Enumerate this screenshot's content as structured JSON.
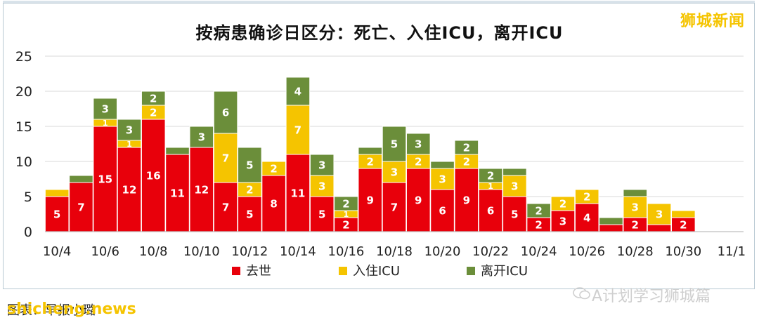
{
  "brand_tag": "狮城新闻",
  "chart_data": {
    "type": "bar",
    "stacked": true,
    "title": "按病患确诊日区分：死亡、入住ICU，离开ICU",
    "xlabel": "",
    "ylabel": "",
    "ylim": [
      0,
      25
    ],
    "yticks": [
      0,
      5,
      10,
      15,
      20,
      25
    ],
    "grid": true,
    "legend_position": "bottom",
    "categories": [
      "10/4",
      "10/5",
      "10/6",
      "10/7",
      "10/8",
      "10/9",
      "10/10",
      "10/11",
      "10/12",
      "10/13",
      "10/14",
      "10/15",
      "10/16",
      "10/17",
      "10/18",
      "10/19",
      "10/20",
      "10/21",
      "10/22",
      "10/23",
      "10/24",
      "10/25",
      "10/26",
      "10/27",
      "10/28",
      "10/29",
      "10/30",
      "10/31",
      "11/1"
    ],
    "tick_labels": [
      "10/4",
      "10/6",
      "10/8",
      "10/10",
      "10/12",
      "10/14",
      "10/16",
      "10/18",
      "10/20",
      "10/22",
      "10/24",
      "10/26",
      "10/28",
      "10/30",
      "11/1"
    ],
    "series": [
      {
        "name": "去世",
        "color": "#e8000b",
        "values": [
          5,
          7,
          15,
          12,
          16,
          11,
          12,
          7,
          5,
          8,
          11,
          5,
          2,
          9,
          7,
          9,
          6,
          9,
          6,
          5,
          2,
          3,
          4,
          1,
          2,
          1,
          2,
          0,
          0
        ],
        "labels": [
          "5",
          "7",
          "15",
          "12",
          "16",
          "11",
          "12",
          "7",
          "5",
          "8",
          "11",
          "5",
          "2",
          "9",
          "7",
          "9",
          "6",
          "9",
          "6",
          "5",
          "2",
          "3",
          "4",
          "",
          "2",
          "",
          "2",
          "",
          ""
        ]
      },
      {
        "name": "入住ICU",
        "color": "#f5c400",
        "values": [
          1,
          0,
          1,
          1,
          2,
          0,
          0,
          7,
          2,
          2,
          7,
          3,
          1,
          2,
          3,
          2,
          3,
          2,
          1,
          3,
          0,
          2,
          2,
          0,
          3,
          3,
          1,
          0,
          0
        ],
        "labels": [
          "",
          "",
          "1",
          "1",
          "2",
          "",
          "",
          "7",
          "2",
          "2",
          "7",
          "3",
          "1",
          "2",
          "3",
          "2",
          "3",
          "2",
          "1",
          "3",
          "",
          "2",
          "2",
          "",
          "3",
          "3",
          "",
          "",
          ""
        ]
      },
      {
        "name": "离开ICU",
        "color": "#6b8e3a",
        "values": [
          0,
          1,
          3,
          3,
          2,
          1,
          3,
          6,
          5,
          0,
          4,
          3,
          2,
          1,
          5,
          3,
          1,
          2,
          2,
          1,
          2,
          0,
          0,
          1,
          1,
          0,
          0,
          0,
          0
        ],
        "labels": [
          "",
          "",
          "3",
          "3",
          "2",
          "",
          "3",
          "6",
          "5",
          "",
          "4",
          "3",
          "2",
          "",
          "5",
          "3",
          "",
          "2",
          "2",
          "",
          "2",
          "",
          "",
          "",
          "",
          "",
          "",
          "",
          ""
        ]
      }
    ]
  },
  "footer": {
    "source": "图表：早报小璐",
    "domain": "shicheng.news",
    "wechat_name": "A计划学习狮城篇"
  }
}
